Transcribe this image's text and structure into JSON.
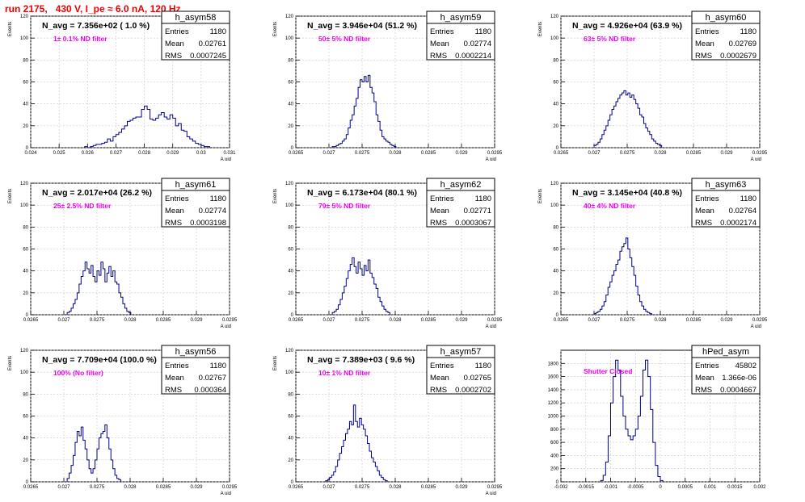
{
  "run_title": "run 2175,   430 V, I_pe ≈ 6.0 nA, 120 Hz",
  "colors": {
    "title": "#ee0000",
    "hist": "#000088",
    "annotation": "#ee00ee",
    "grid": "#c8c8c8"
  },
  "stats_labels": {
    "entries": "Entries",
    "mean": "Mean",
    "rms": "RMS"
  },
  "chart_data": [
    {
      "type": "histogram",
      "name": "h_asym58",
      "entries": "1180",
      "mean": "0.02761",
      "rms": "0.0007245",
      "nlabel": "N_avg = 7.356e+02 ( 1.0 %)",
      "annotation": "1± 0.1% ND filter",
      "ylabel": "Events",
      "xlabel": "A_uid",
      "grid": true,
      "xlim": [
        0.024,
        0.031
      ],
      "ylim": [
        0,
        120
      ],
      "xticks": [
        0.024,
        0.025,
        0.026,
        0.027,
        0.028,
        0.029,
        0.03,
        0.031
      ],
      "xtick_labels": [
        "0.024",
        "0.025",
        "0.026",
        "0.027",
        "0.028",
        "0.029",
        "0.03",
        "0.031"
      ],
      "yticks": [
        0,
        20,
        40,
        60,
        80,
        100,
        120
      ],
      "bins": {
        "start": 0.0259,
        "width": 0.0001,
        "counts": [
          1,
          0,
          1,
          2,
          3,
          3,
          4,
          5,
          8,
          6,
          10,
          12,
          14,
          17,
          20,
          24,
          25,
          27,
          28,
          28,
          35,
          38,
          35,
          26,
          25,
          27,
          30,
          32,
          28,
          26,
          30,
          27,
          20,
          22,
          16,
          15,
          10,
          8,
          6,
          4,
          3,
          2,
          1,
          1
        ]
      }
    },
    {
      "type": "histogram",
      "name": "h_asym59",
      "entries": "1180",
      "mean": "0.02774",
      "rms": "0.0002214",
      "nlabel": "N_avg = 3.946e+04 (51.2 %)",
      "annotation": "50± 5% ND filter",
      "ylabel": "Events",
      "xlabel": "A_uid",
      "grid": true,
      "xlim": [
        0.0265,
        0.0295
      ],
      "ylim": [
        0,
        120
      ],
      "xticks": [
        0.0265,
        0.027,
        0.0275,
        0.028,
        0.0285,
        0.029,
        0.0295
      ],
      "xtick_labels": [
        "0.0265",
        "0.027",
        "0.0275",
        "0.028",
        "0.0285",
        "0.029",
        "0.0295"
      ],
      "yticks": [
        0,
        20,
        40,
        60,
        80,
        100,
        120
      ],
      "bins": {
        "start": 0.02705,
        "width": 3e-05,
        "counts": [
          1,
          1,
          2,
          3,
          4,
          6,
          8,
          12,
          18,
          25,
          30,
          38,
          45,
          55,
          62,
          60,
          65,
          60,
          66,
          55,
          50,
          42,
          30,
          24,
          16,
          10,
          8,
          6,
          5,
          3,
          2,
          1
        ]
      }
    },
    {
      "type": "histogram",
      "name": "h_asym60",
      "entries": "1180",
      "mean": "0.02769",
      "rms": "0.0002679",
      "nlabel": "N_avg = 4.926e+04 (63.9 %)",
      "annotation": "63± 5% ND filter",
      "ylabel": "Events",
      "xlabel": "A_uid",
      "grid": true,
      "xlim": [
        0.0265,
        0.0295
      ],
      "ylim": [
        0,
        120
      ],
      "xticks": [
        0.0265,
        0.027,
        0.0275,
        0.028,
        0.0285,
        0.029,
        0.0295
      ],
      "xtick_labels": [
        "0.0265",
        "0.027",
        "0.0275",
        "0.028",
        "0.0285",
        "0.029",
        "0.0295"
      ],
      "yticks": [
        0,
        20,
        40,
        60,
        80,
        100,
        120
      ],
      "bins": {
        "start": 0.027,
        "width": 3e-05,
        "counts": [
          2,
          3,
          5,
          8,
          12,
          16,
          20,
          25,
          30,
          35,
          38,
          42,
          45,
          48,
          50,
          52,
          48,
          50,
          46,
          48,
          44,
          40,
          36,
          30,
          28,
          22,
          18,
          15,
          12,
          8,
          6,
          4,
          3,
          2
        ]
      }
    },
    {
      "type": "histogram",
      "name": "h_asym61",
      "entries": "1180",
      "mean": "0.02774",
      "rms": "0.0003198",
      "nlabel": "N_avg = 2.017e+04 (26.2 %)",
      "annotation": "25± 2.5% ND filter",
      "ylabel": "Events",
      "xlabel": "A_uid",
      "grid": true,
      "xlim": [
        0.0265,
        0.0295
      ],
      "ylim": [
        0,
        120
      ],
      "xticks": [
        0.0265,
        0.027,
        0.0275,
        0.028,
        0.0285,
        0.029,
        0.0295
      ],
      "xtick_labels": [
        "0.0265",
        "0.027",
        "0.0275",
        "0.028",
        "0.0285",
        "0.029",
        "0.0295"
      ],
      "yticks": [
        0,
        20,
        40,
        60,
        80,
        100,
        120
      ],
      "bins": {
        "start": 0.02705,
        "width": 3e-05,
        "counts": [
          2,
          3,
          6,
          10,
          14,
          20,
          28,
          35,
          40,
          48,
          42,
          38,
          45,
          35,
          30,
          40,
          36,
          48,
          42,
          30,
          38,
          44,
          35,
          40,
          30,
          28,
          20,
          16,
          10,
          6,
          3,
          2
        ]
      }
    },
    {
      "type": "histogram",
      "name": "h_asym62",
      "entries": "1180",
      "mean": "0.02771",
      "rms": "0.0003067",
      "nlabel": "N_avg = 6.173e+04 (80.1 %)",
      "annotation": "79± 5% ND filter",
      "ylabel": "Events",
      "xlabel": "A_uid",
      "grid": true,
      "xlim": [
        0.0265,
        0.0295
      ],
      "ylim": [
        0,
        120
      ],
      "xticks": [
        0.0265,
        0.027,
        0.0275,
        0.028,
        0.0285,
        0.029,
        0.0295
      ],
      "xtick_labels": [
        "0.0265",
        "0.027",
        "0.0275",
        "0.028",
        "0.0285",
        "0.029",
        "0.0295"
      ],
      "yticks": [
        0,
        20,
        40,
        60,
        80,
        100,
        120
      ],
      "bins": {
        "start": 0.02705,
        "width": 3e-05,
        "counts": [
          2,
          3,
          5,
          9,
          14,
          20,
          26,
          33,
          40,
          46,
          52,
          44,
          38,
          48,
          42,
          36,
          45,
          40,
          50,
          38,
          34,
          28,
          24,
          16,
          12,
          8,
          5,
          3,
          2
        ]
      }
    },
    {
      "type": "histogram",
      "name": "h_asym63",
      "entries": "1180",
      "mean": "0.02764",
      "rms": "0.0002174",
      "nlabel": "N_avg = 3.145e+04 (40.8 %)",
      "annotation": "40± 4% ND filter",
      "ylabel": "Events",
      "xlabel": "A_uid",
      "grid": true,
      "xlim": [
        0.0265,
        0.0295
      ],
      "ylim": [
        0,
        120
      ],
      "xticks": [
        0.0265,
        0.027,
        0.0275,
        0.028,
        0.0285,
        0.029,
        0.0295
      ],
      "xtick_labels": [
        "0.0265",
        "0.027",
        "0.0275",
        "0.028",
        "0.0285",
        "0.029",
        "0.0295"
      ],
      "yticks": [
        0,
        20,
        40,
        60,
        80,
        100,
        120
      ],
      "bins": {
        "start": 0.027,
        "width": 3e-05,
        "counts": [
          1,
          2,
          3,
          5,
          8,
          12,
          18,
          25,
          30,
          36,
          40,
          46,
          50,
          58,
          62,
          65,
          70,
          60,
          52,
          44,
          36,
          26,
          18,
          12,
          8,
          5,
          3,
          2,
          1
        ]
      }
    },
    {
      "type": "histogram",
      "name": "h_asym56",
      "entries": "1180",
      "mean": "0.02767",
      "rms": "0.000364",
      "nlabel": "N_avg = 7.709e+04 (100.0 %)",
      "annotation": "100% (No filter)",
      "ylabel": "Events",
      "xlabel": "A_uid",
      "grid": true,
      "xlim": [
        0.0265,
        0.0295
      ],
      "ylim": [
        0,
        120
      ],
      "xticks": [
        0.0265,
        0.027,
        0.0275,
        0.028,
        0.0285,
        0.029,
        0.0295
      ],
      "xtick_labels": [
        "0.0265",
        "0.027",
        "0.0275",
        "0.028",
        "0.0285",
        "0.029",
        "0.0295"
      ],
      "yticks": [
        0,
        20,
        40,
        60,
        80,
        100,
        120
      ],
      "bins": {
        "start": 0.02705,
        "width": 3e-05,
        "counts": [
          3,
          8,
          15,
          24,
          36,
          46,
          42,
          50,
          38,
          30,
          20,
          12,
          8,
          12,
          20,
          30,
          40,
          44,
          46,
          52,
          40,
          30,
          20,
          12,
          6,
          3,
          2
        ]
      }
    },
    {
      "type": "histogram",
      "name": "h_asym57",
      "entries": "1180",
      "mean": "0.02765",
      "rms": "0.0002702",
      "nlabel": "N_avg = 7.389e+03 ( 9.6 %)",
      "annotation": "10± 1% ND filter",
      "ylabel": "Events",
      "xlabel": "A_uid",
      "grid": true,
      "xlim": [
        0.0265,
        0.0295
      ],
      "ylim": [
        0,
        120
      ],
      "xticks": [
        0.0265,
        0.027,
        0.0275,
        0.028,
        0.0285,
        0.029,
        0.0295
      ],
      "xtick_labels": [
        "0.0265",
        "0.027",
        "0.0275",
        "0.028",
        "0.0285",
        "0.029",
        "0.0295"
      ],
      "yticks": [
        0,
        20,
        40,
        60,
        80,
        100,
        120
      ],
      "bins": {
        "start": 0.02695,
        "width": 3e-05,
        "counts": [
          1,
          2,
          4,
          6,
          9,
          14,
          20,
          26,
          32,
          38,
          44,
          48,
          55,
          52,
          70,
          55,
          50,
          58,
          52,
          48,
          42,
          35,
          28,
          22,
          18,
          14,
          10,
          6,
          4,
          2,
          1
        ]
      }
    },
    {
      "type": "histogram",
      "name": "hPed_asym",
      "entries": "45802",
      "mean": "1.366e-06",
      "rms": "0.0004667",
      "nlabel": "",
      "annotation": "Shutter Closed",
      "ylabel": "",
      "xlabel": "",
      "grid": true,
      "xlim": [
        -0.002,
        0.002
      ],
      "ylim": [
        0,
        2000
      ],
      "xticks": [
        -0.002,
        -0.0015,
        -0.001,
        -0.0005,
        0,
        0.0005,
        0.001,
        0.0015,
        0.002
      ],
      "xtick_labels": [
        "-0.002",
        "-0.0015",
        "-0.001",
        "-0.0005",
        "0",
        "0.0005",
        "0.001",
        "0.0015",
        "0.002"
      ],
      "yticks": [
        0,
        200,
        400,
        600,
        800,
        1000,
        1200,
        1400,
        1600,
        1800
      ],
      "bins": {
        "start": -0.0012,
        "width": 5e-05,
        "counts": [
          20,
          100,
          300,
          700,
          1200,
          1600,
          1850,
          1700,
          1300,
          1000,
          800,
          700,
          640,
          700,
          800,
          1000,
          1300,
          1700,
          1850,
          1600,
          1100,
          600,
          250,
          80,
          20
        ]
      }
    }
  ]
}
